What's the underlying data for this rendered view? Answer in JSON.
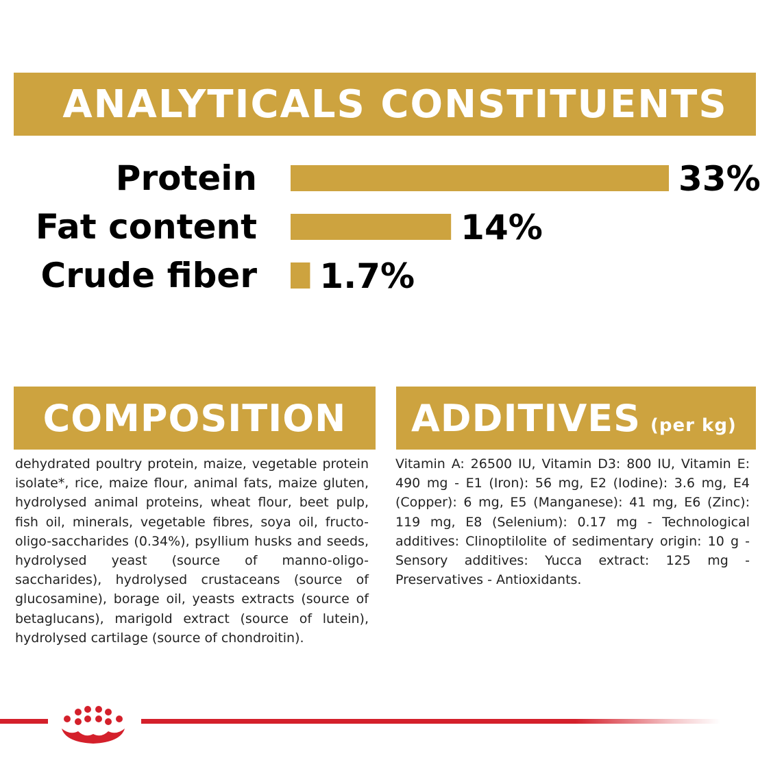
{
  "headings": {
    "analytical": "ANALYTICALS CONSTITUENTS",
    "composition": "COMPOSITION",
    "additives": "ADDITIVES",
    "additives_sub": "(per kg)"
  },
  "chart_data": {
    "type": "bar",
    "orientation": "horizontal",
    "categories": [
      "Protein",
      "Fat content",
      "Crude fiber"
    ],
    "values": [
      33,
      14,
      1.7
    ],
    "value_labels": [
      "33%",
      "14%",
      "1.7%"
    ],
    "unit": "%",
    "bar_color": "#cda33f",
    "title": "ANALYTICALS CONSTITUENTS"
  },
  "composition_text": "dehydrated poultry protein, maize, vegetable protein isolate*, rice, maize flour, animal fats, maize gluten, hydrolysed animal proteins, wheat flour, beet pulp, fish oil, minerals, vegetable fibres, soya oil, fructo-oligo-saccharides (0.34%), psyllium husks and seeds, hydrolysed yeast (source of manno-oligo-saccharides), hydrolysed crustaceans (source of glucosamine), borage oil, yeasts extracts (source of betaglucans), marigold extract (source of lutein), hydrolysed cartilage (source of chondroitin).",
  "additives_text": "Vitamin A: 26500 IU, Vitamin D3: 800 IU, Vitamin E: 490 mg - E1 (Iron): 56 mg, E2 (Iodine): 3.6 mg, E4 (Copper): 6 mg, E5 (Manganese): 41 mg, E6 (Zinc): 119 mg, E8 (Selenium): 0.17 mg - Technological additives: Clinoptilolite of sedimentary origin: 10 g - Sensory additives: Yucca extract: 125 mg - Preservatives - Antioxidants.",
  "colors": {
    "gold": "#cda33f",
    "brand_red": "#d4202b"
  },
  "logo": {
    "icon": "royal-canin-crown-icon"
  }
}
